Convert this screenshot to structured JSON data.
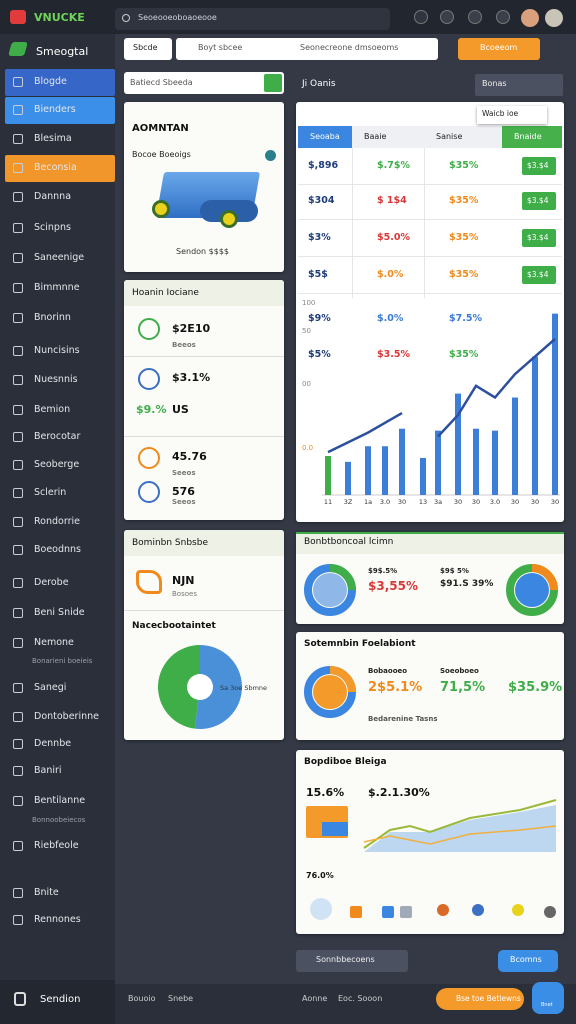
{
  "topbar": {
    "logo": "VNUCKE",
    "search": "Seoeooeoboaoeooe"
  },
  "sidebar": {
    "title": "Smeogtal",
    "items": [
      "Blogde",
      "Bienders",
      "Blesima",
      "Beconsia",
      "Dannna",
      "Scinpns",
      "Saneenige",
      "Bimmnne",
      "Bnorinn",
      "Nuncisins",
      "Nuesnnis",
      "Bemion",
      "Berocotar",
      "Seoberge",
      "Sclerin",
      "Rondorrie",
      "Boeodnns",
      "Derobe",
      "Beni Snide",
      "Nemone",
      "Sanegi",
      "Dontoberinne",
      "Dennbe",
      "Baniri",
      "Bentilanne",
      "Riebfeole",
      "Bnite",
      "Rennones"
    ],
    "notes": [
      "Bonarieni boeieis",
      "Bonnoobeiecos"
    ],
    "footer": "Sendion"
  },
  "toolbar": {
    "button": "Sbcde",
    "input_left": "Boyt sbcee",
    "input_right": "Seonecreone dmsoeoms",
    "action": "Bcoeeom"
  },
  "left": {
    "search": "Batiecd Sbeeda",
    "product": {
      "title": "AOMNTAN",
      "subtitle": "Bocoe Boeoigs",
      "caption": "Sendon $$$$"
    },
    "metrics": {
      "title": "Hoanin Iociane",
      "texts": [
        "$2E10",
        "Beeos",
        "$3.1%",
        "$9.%",
        "US",
        "45.76",
        "Seeos",
        "576",
        "Seeos"
      ]
    },
    "promo": {
      "title": "Bominbn Snbsbe",
      "value": "NJN",
      "label": "Bosoes"
    },
    "pie": {
      "title": "Nacecbootaintet",
      "label": "Sa 3oe Sbmne",
      "values": [
        52,
        48
      ]
    }
  },
  "panel": {
    "title": "Ji Oanis",
    "button": "Bonas",
    "tooltip": "Waicb ioe",
    "table": {
      "headers": [
        "Seoaba",
        "Baaie",
        "Sanise",
        "Bnaide"
      ],
      "rows": [
        [
          "$,896",
          "$.7$%",
          "$35%",
          "$3.$4"
        ],
        [
          "$304",
          "$ 1$4",
          "$35%",
          "$3.$4"
        ],
        [
          "$3%",
          "$5.0%",
          "$35%",
          "$3.$4"
        ],
        [
          "$5$",
          "$.0%",
          "$35%",
          "$3.$4"
        ],
        [
          "$9%",
          "$.0%",
          "$7.5%"
        ],
        [
          "$5%",
          "$3.5%",
          "$35%"
        ]
      ]
    },
    "chart": {
      "y_labels": [
        "100",
        "50",
        "00",
        "0.0"
      ],
      "x_labels": [
        "11",
        "3Z",
        "1a",
        "3.0",
        "30",
        "13",
        "3a",
        "30",
        "30",
        "3.0",
        "30",
        "30",
        "30"
      ],
      "bars": [
        20,
        17,
        25,
        25,
        34,
        19,
        33,
        52,
        34,
        33,
        50,
        71,
        93
      ],
      "line": [
        22,
        27,
        32,
        37,
        42,
        null,
        30,
        41,
        56,
        50,
        62,
        71,
        80
      ]
    }
  },
  "cards": [
    {
      "title": "Bonbtboncoal lcimn",
      "texts": [
        "$9$.5%",
        "$3,55%",
        "$9$ 5%",
        "$91.S 39%"
      ]
    },
    {
      "title": "Sotemnbin Foelabiont",
      "texts": [
        "Bobaooeo",
        "Soeoboeo",
        "2$5.1%",
        "71,5%",
        "$35.9%",
        "Bedarenine Tasns"
      ]
    },
    {
      "title": "Bopdiboe Bleiga",
      "texts": [
        "15.6%",
        "$.2.1.30%",
        "76.0%"
      ]
    }
  ],
  "bottom": {
    "secondary": "Sonnbbecoens",
    "primary": "Bcomns"
  },
  "footer": {
    "left": [
      "Bouoio",
      "Snebe"
    ],
    "center": [
      "Aonne",
      "Eoc. Sooon"
    ],
    "action": "Bse toe Betlewns",
    "fab": "Bnet"
  }
}
